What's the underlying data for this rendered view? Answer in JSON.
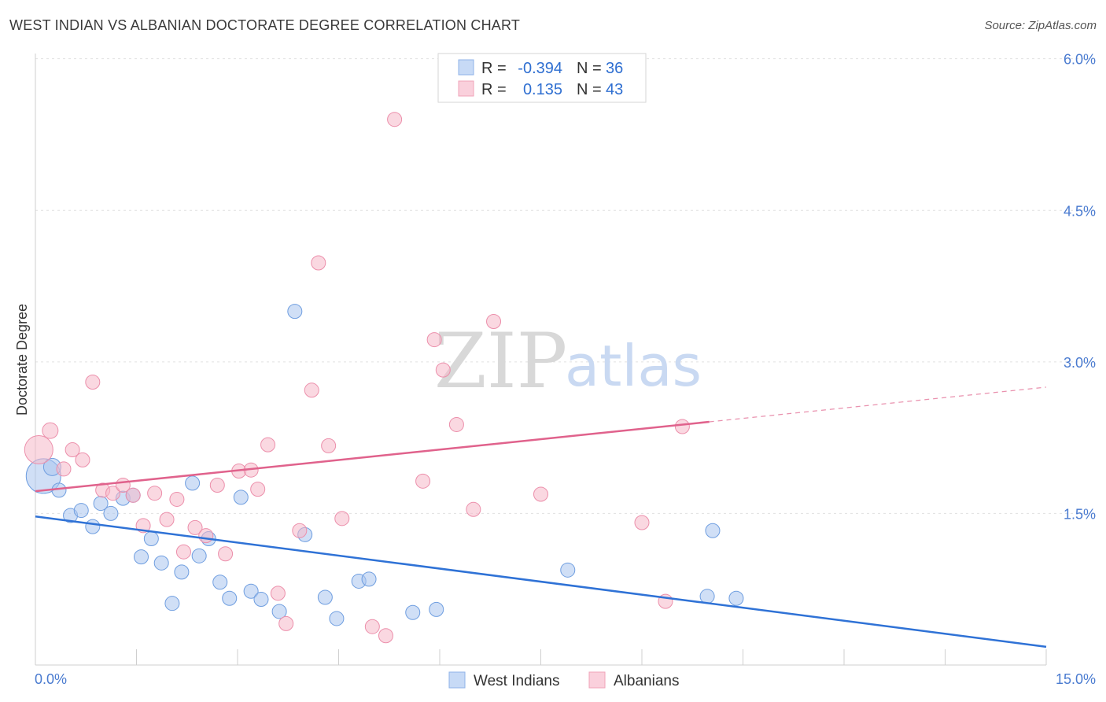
{
  "title": "WEST INDIAN VS ALBANIAN DOCTORATE DEGREE CORRELATION CHART",
  "source": "Source: ZipAtlas.com",
  "watermark": {
    "zip": "ZIP",
    "atlas": "atlas"
  },
  "legend_top": [
    {
      "r_label": "R =",
      "r_value": "-0.394",
      "n_label": "N =",
      "n_value": "36",
      "color": "#a9c5ef"
    },
    {
      "r_label": "R =",
      "r_value": "0.135",
      "n_label": "N =",
      "n_value": "43",
      "color": "#f5b8c9"
    }
  ],
  "legend_bottom": [
    {
      "label": "West Indians",
      "color": "#a9c5ef"
    },
    {
      "label": "Albanians",
      "color": "#f5b8c9"
    }
  ],
  "chart_data": {
    "type": "scatter",
    "title": "WEST INDIAN VS ALBANIAN DOCTORATE DEGREE CORRELATION CHART",
    "xlabel": "",
    "ylabel": "Doctorate Degree",
    "xlim": [
      0,
      15
    ],
    "ylim": [
      0,
      6.2
    ],
    "x_tick_labels": [
      "0.0%",
      "15.0%"
    ],
    "y_ticks": [
      1.5,
      3.0,
      4.5,
      6.0
    ],
    "y_tick_labels": [
      "1.5%",
      "3.0%",
      "4.5%",
      "6.0%"
    ],
    "grid": true,
    "series": [
      {
        "name": "West Indians",
        "color": "#a9c5ef",
        "stroke": "#6f9ee0",
        "trend_color": "#2f72d6",
        "trend": {
          "x0": 0.0,
          "y0": 1.47,
          "x1": 15.0,
          "y1": 0.18,
          "solid_to": 15.0
        },
        "points": [
          [
            0.12,
            1.87,
            22
          ],
          [
            0.25,
            1.96,
            11
          ],
          [
            0.35,
            1.73,
            9
          ],
          [
            0.52,
            1.48,
            9
          ],
          [
            0.68,
            1.53,
            9
          ],
          [
            0.85,
            1.37,
            9
          ],
          [
            0.97,
            1.6,
            9
          ],
          [
            1.12,
            1.5,
            9
          ],
          [
            1.3,
            1.65,
            9
          ],
          [
            1.45,
            1.68,
            9
          ],
          [
            1.57,
            1.07,
            9
          ],
          [
            1.72,
            1.25,
            9
          ],
          [
            1.87,
            1.01,
            9
          ],
          [
            2.03,
            0.61,
            9
          ],
          [
            2.17,
            0.92,
            9
          ],
          [
            2.33,
            1.8,
            9
          ],
          [
            2.43,
            1.08,
            9
          ],
          [
            2.57,
            1.25,
            9
          ],
          [
            2.74,
            0.82,
            9
          ],
          [
            2.88,
            0.66,
            9
          ],
          [
            3.05,
            1.66,
            9
          ],
          [
            3.2,
            0.73,
            9
          ],
          [
            3.35,
            0.65,
            9
          ],
          [
            3.62,
            0.53,
            9
          ],
          [
            3.85,
            3.5,
            9
          ],
          [
            4.0,
            1.29,
            9
          ],
          [
            4.3,
            0.67,
            9
          ],
          [
            4.47,
            0.46,
            9
          ],
          [
            4.8,
            0.83,
            9
          ],
          [
            4.95,
            0.85,
            9
          ],
          [
            5.6,
            0.52,
            9
          ],
          [
            5.95,
            0.55,
            9
          ],
          [
            7.9,
            0.94,
            9
          ],
          [
            9.97,
            0.68,
            9
          ],
          [
            10.05,
            1.33,
            9
          ],
          [
            10.4,
            0.66,
            9
          ]
        ]
      },
      {
        "name": "Albanians",
        "color": "#f5b8c9",
        "stroke": "#ec8fab",
        "trend_color": "#e0628c",
        "trend": {
          "x0": 0.0,
          "y0": 1.72,
          "x1": 15.0,
          "y1": 2.75,
          "solid_to": 10.0
        },
        "points": [
          [
            0.05,
            2.13,
            18
          ],
          [
            0.22,
            2.32,
            10
          ],
          [
            0.42,
            1.94,
            9
          ],
          [
            0.55,
            2.13,
            9
          ],
          [
            0.7,
            2.03,
            9
          ],
          [
            0.85,
            2.8,
            9
          ],
          [
            1.0,
            1.73,
            9
          ],
          [
            1.15,
            1.7,
            9
          ],
          [
            1.3,
            1.78,
            9
          ],
          [
            1.45,
            1.68,
            9
          ],
          [
            1.6,
            1.38,
            9
          ],
          [
            1.77,
            1.7,
            9
          ],
          [
            1.95,
            1.44,
            9
          ],
          [
            2.1,
            1.64,
            9
          ],
          [
            2.2,
            1.12,
            9
          ],
          [
            2.37,
            1.36,
            9
          ],
          [
            2.53,
            1.28,
            9
          ],
          [
            2.7,
            1.78,
            9
          ],
          [
            2.82,
            1.1,
            9
          ],
          [
            3.02,
            1.92,
            9
          ],
          [
            3.2,
            1.93,
            9
          ],
          [
            3.3,
            1.74,
            9
          ],
          [
            3.45,
            2.18,
            9
          ],
          [
            3.6,
            0.71,
            9
          ],
          [
            3.72,
            0.41,
            9
          ],
          [
            3.92,
            1.33,
            9
          ],
          [
            4.1,
            2.72,
            9
          ],
          [
            4.2,
            3.98,
            9
          ],
          [
            4.35,
            2.17,
            9
          ],
          [
            4.55,
            1.45,
            9
          ],
          [
            5.0,
            0.38,
            9
          ],
          [
            5.2,
            0.29,
            9
          ],
          [
            5.33,
            5.4,
            9
          ],
          [
            5.75,
            1.82,
            9
          ],
          [
            5.92,
            3.22,
            9
          ],
          [
            6.05,
            2.92,
            9
          ],
          [
            6.25,
            2.38,
            9
          ],
          [
            6.5,
            1.54,
            9
          ],
          [
            6.8,
            3.4,
            9
          ],
          [
            7.5,
            1.69,
            9
          ],
          [
            9.0,
            1.41,
            9
          ],
          [
            9.35,
            0.63,
            9
          ],
          [
            9.6,
            2.36,
            9
          ]
        ]
      }
    ]
  }
}
